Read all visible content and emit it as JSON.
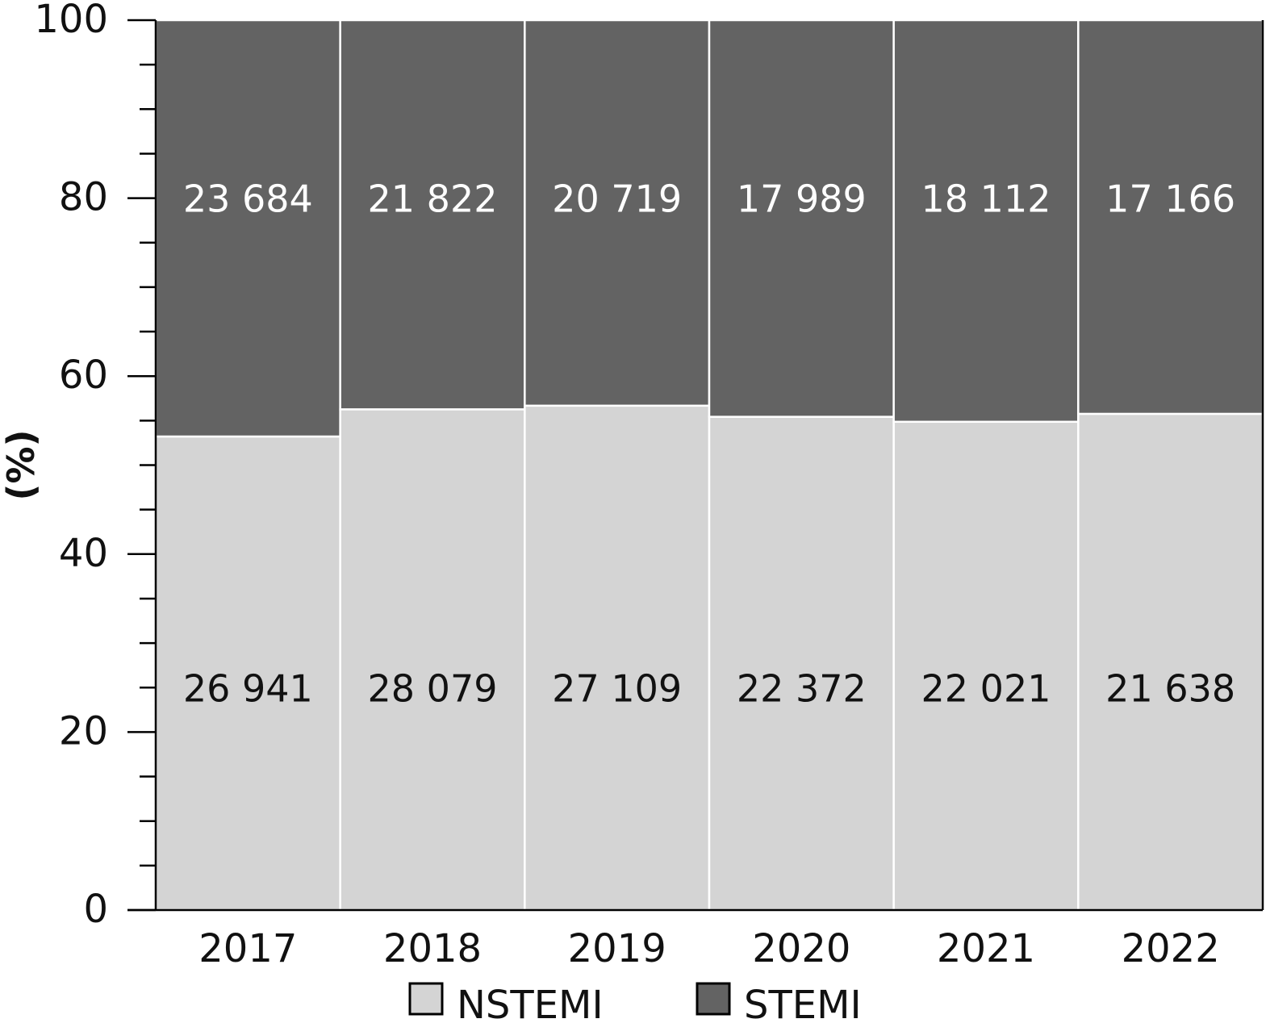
{
  "colors": {
    "NSTEMI": "#d4d4d4",
    "STEMI": "#636363",
    "axis": "#000000",
    "segment_border": "#ffffff",
    "label_on_dark": "#ffffff",
    "label_on_light": "#111111"
  },
  "chart_data": {
    "type": "bar",
    "stacking": "percent",
    "categories": [
      "2017",
      "2018",
      "2019",
      "2020",
      "2021",
      "2022"
    ],
    "series": [
      {
        "name": "NSTEMI",
        "values": [
          26941,
          28079,
          27109,
          22372,
          22021,
          21638
        ],
        "value_labels": [
          "26 941",
          "28 079",
          "27 109",
          "22 372",
          "22 021",
          "21 638"
        ]
      },
      {
        "name": "STEMI",
        "values": [
          23684,
          21822,
          20719,
          17989,
          18112,
          17166
        ],
        "value_labels": [
          "23 684",
          "21 822",
          "20 719",
          "17 989",
          "18 112",
          "17 166"
        ]
      }
    ],
    "ylabel": "(%)",
    "xlabel": "",
    "ylim": [
      0,
      100
    ],
    "yticks": [
      0,
      20,
      40,
      60,
      80,
      100
    ],
    "ytick_labels": [
      "0",
      "20",
      "40",
      "60",
      "80",
      "100"
    ],
    "y_minor_step": 5,
    "grid": false,
    "legend_position": "bottom-center"
  }
}
